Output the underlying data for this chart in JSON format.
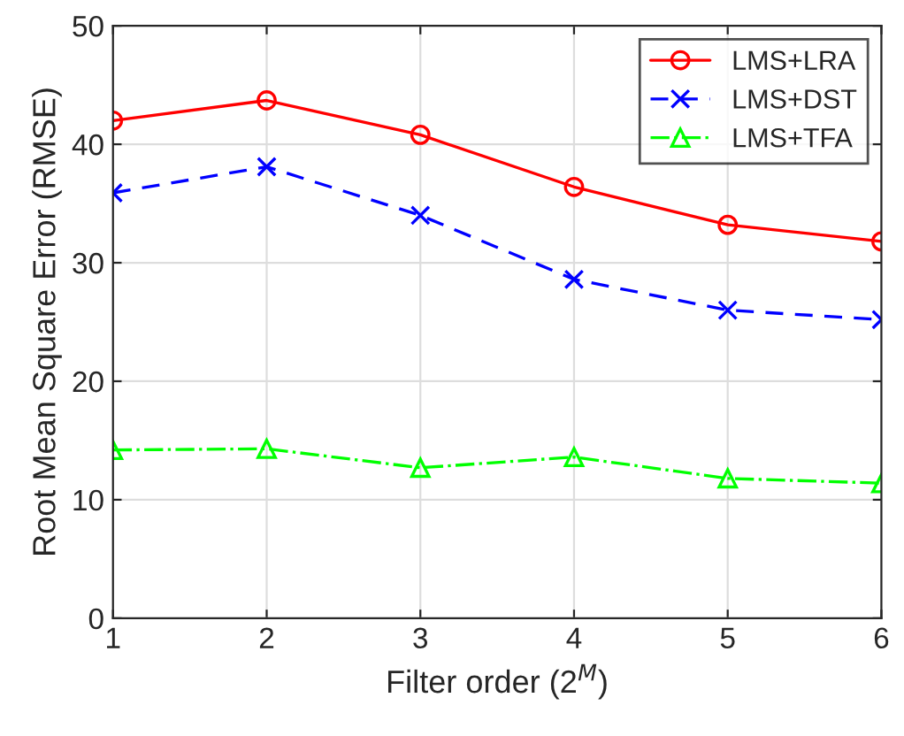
{
  "chart_data": {
    "type": "line",
    "xlabel": "Filter order (2$^{M}$)",
    "ylabel": "Root Mean Square Error (RMSE)",
    "x": [
      1,
      2,
      3,
      4,
      5,
      6
    ],
    "series": [
      {
        "name": "LMS+LRA",
        "color": "#ff0000",
        "values": [
          42.0,
          43.7,
          40.8,
          36.4,
          33.2,
          31.8
        ],
        "marker": "circle",
        "line_style": "solid"
      },
      {
        "name": "LMS+DST",
        "color": "#0000ff",
        "values": [
          35.9,
          38.1,
          34.0,
          28.6,
          26.0,
          25.2
        ],
        "marker": "cross",
        "line_style": "dashed"
      },
      {
        "name": "LMS+TFA",
        "color": "#00ff00",
        "values": [
          14.2,
          14.3,
          12.7,
          13.6,
          11.8,
          11.4
        ],
        "marker": "triangle",
        "line_style": "dashdot"
      }
    ],
    "xlim": [
      1,
      6
    ],
    "xticks": [
      1,
      2,
      3,
      4,
      5,
      6
    ],
    "ylim": [
      0,
      50
    ],
    "yticks": [
      0,
      10,
      20,
      30,
      40,
      50
    ],
    "grid": true,
    "legend": "top right"
  }
}
